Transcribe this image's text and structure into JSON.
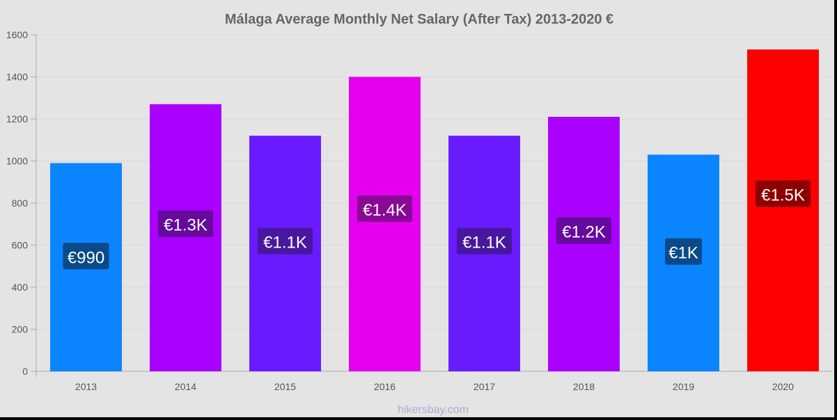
{
  "watermark": "hikersbay.com",
  "chart_data": {
    "type": "bar",
    "title": "Málaga Average Monthly Net Salary (After Tax) 2013-2020 €",
    "xlabel": "",
    "ylabel": "",
    "categories": [
      "2013",
      "2014",
      "2015",
      "2016",
      "2017",
      "2018",
      "2019",
      "2020"
    ],
    "values": [
      990,
      1270,
      1120,
      1400,
      1120,
      1210,
      1030,
      1530
    ],
    "data_labels": [
      "€990",
      "€1.3K",
      "€1.1K",
      "€1.4K",
      "€1.1K",
      "€1.2K",
      "€1K",
      "€1.5K"
    ],
    "bar_colors": [
      "#0a84ff",
      "#aa00ff",
      "#6a1aff",
      "#e400ef",
      "#6a1aff",
      "#aa00ff",
      "#0a84ff",
      "#ff0000"
    ],
    "label_bg_colors": [
      "#0c4074",
      "#5a0a8c",
      "#42188e",
      "#7a0a84",
      "#42188e",
      "#5a0a8c",
      "#0c4074",
      "#7a0000"
    ],
    "ylim": [
      0,
      1600
    ],
    "yticks": [
      0,
      200,
      400,
      600,
      800,
      1000,
      1200,
      1400,
      1600
    ],
    "grid": true,
    "legend": "none"
  }
}
